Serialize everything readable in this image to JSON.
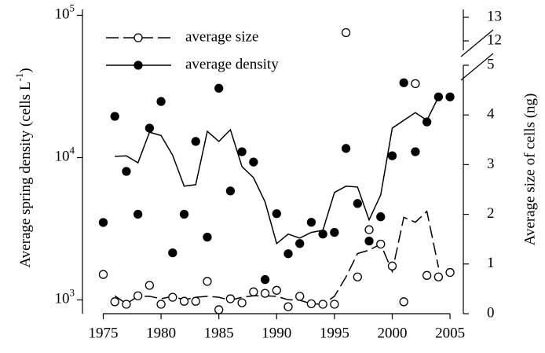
{
  "chart_data": {
    "type": "scatter",
    "x": [
      1975,
      1976,
      1977,
      1978,
      1979,
      1980,
      1981,
      1982,
      1983,
      1984,
      1985,
      1986,
      1987,
      1988,
      1989,
      1990,
      1991,
      1992,
      1993,
      1994,
      1995,
      1996,
      1997,
      1998,
      1999,
      2000,
      2001,
      2002,
      2003,
      2004,
      2005
    ],
    "xlim": [
      1973.2,
      2006.15
    ],
    "xticks": [
      1975,
      1980,
      1985,
      1990,
      1995,
      2000,
      2005
    ],
    "y_label_parts": [
      "Average spring density (cells L",
      "-1",
      ")"
    ],
    "y2_label": "Average size of cells (ng)",
    "ylog": true,
    "ylim": [
      800,
      110000
    ],
    "yticks": [
      {
        "value": 1000,
        "label": "10",
        "exponent": "3"
      },
      {
        "value": 10000,
        "label": "10",
        "exponent": "4"
      },
      {
        "value": 100000,
        "label": "10",
        "exponent": "5"
      }
    ],
    "y2lim": [
      0,
      13
    ],
    "y2break": [
      5,
      12
    ],
    "y2ticks": [
      0,
      1,
      2,
      3,
      4,
      5,
      12,
      13
    ],
    "legend": "upper left",
    "series": [
      {
        "name": "average size",
        "color": "#000000",
        "marker": "open",
        "line": "dashed",
        "axis": "y2",
        "values": [
          0.79,
          0.24,
          0.19,
          0.36,
          0.57,
          0.19,
          0.33,
          0.25,
          0.25,
          0.65,
          0.08,
          0.3,
          0.22,
          0.44,
          0.41,
          0.47,
          0.14,
          0.35,
          0.2,
          0.19,
          0.19,
          12.35,
          0.74,
          1.69,
          1.4,
          0.96,
          0.24,
          4.63,
          0.77,
          0.74,
          0.83
        ],
        "average": [
          null,
          0.36,
          0.2,
          0.35,
          0.35,
          0.3,
          0.35,
          0.28,
          0.33,
          0.35,
          0.33,
          0.27,
          0.33,
          0.36,
          0.36,
          0.35,
          0.28,
          0.27,
          0.2,
          0.19,
          0.35,
          0.74,
          1.21,
          1.28,
          1.4,
          0.85,
          1.94,
          1.84,
          2.06,
          0.93,
          null
        ]
      },
      {
        "name": "average density",
        "color": "#000000",
        "marker": "filled",
        "line": "solid",
        "values": [
          3500,
          19500,
          8000,
          4000,
          16100,
          24800,
          2140,
          4000,
          13000,
          2760,
          30700,
          5830,
          11000,
          9300,
          1390,
          4040,
          2110,
          2490,
          3510,
          2900,
          2980,
          11600,
          4760,
          2590,
          3840,
          10300,
          33600,
          11000,
          17800,
          26700,
          26700
        ],
        "average": [
          null,
          10200,
          10300,
          9200,
          15100,
          14300,
          10400,
          6300,
          6450,
          15300,
          13000,
          15700,
          8650,
          7230,
          4880,
          2490,
          2900,
          2720,
          2980,
          3090,
          5690,
          6300,
          6210,
          3650,
          5470,
          16100,
          18300,
          20700,
          18300,
          26700,
          null
        ]
      }
    ]
  }
}
